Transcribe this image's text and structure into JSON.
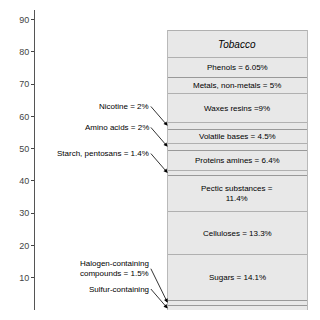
{
  "chart_data": {
    "type": "bar",
    "stacked": true,
    "title": "Tobacco",
    "categories": [
      null
    ],
    "color": "#e8e8e8",
    "series": [
      {
        "values": [
          1.5
        ],
        "value_labels": [
          null
        ]
      },
      {
        "values": [
          1.5
        ],
        "value_labels": [
          null
        ]
      },
      {
        "values": [
          14.1
        ],
        "value_labels": [
          "Sugars = 14.1%"
        ]
      },
      {
        "values": [
          13.3
        ],
        "value_labels": [
          "Celluloses = 13.3%"
        ]
      },
      {
        "values": [
          11.4
        ],
        "value_labels": [
          "Pectic substances =\n11.4%"
        ]
      },
      {
        "values": [
          1.4
        ],
        "value_labels": [
          null
        ]
      },
      {
        "values": [
          6.4
        ],
        "value_labels": [
          "Proteins amines = 6.4%"
        ]
      },
      {
        "values": [
          2.0
        ],
        "value_labels": [
          null
        ]
      },
      {
        "values": [
          4.5
        ],
        "value_labels": [
          "Volatile bases = 4.5%"
        ]
      },
      {
        "values": [
          2.0
        ],
        "value_labels": [
          null
        ]
      },
      {
        "values": [
          9.0
        ],
        "value_labels": [
          "Waxes resins =9%"
        ]
      },
      {
        "values": [
          5.0
        ],
        "value_labels": [
          "Metals, non-metals = 5%"
        ]
      },
      {
        "values": [
          6.05
        ],
        "value_labels": [
          "Phenols = 6.05%"
        ]
      },
      {
        "values": [
          8.55
        ],
        "value_labels": [
          null
        ]
      }
    ],
    "annotations": [
      {
        "text": "Nicotine = 2%",
        "y": 57.1
      },
      {
        "text": "Amino acids = 2%",
        "y": 50.6
      },
      {
        "text": "Starch, pentosans = 1.4%",
        "y": 42.5
      },
      {
        "text": "Halogen-containing\ncompounds = 1.5%",
        "y": 2.25
      },
      {
        "text": "Sulfur-containing",
        "y": 0.5
      }
    ],
    "ylim": [
      0,
      93
    ],
    "yticks": [
      10,
      20,
      30,
      40,
      50,
      60,
      70,
      80,
      90
    ],
    "grid": false,
    "data_labels": true,
    "tick_labels": "y"
  }
}
